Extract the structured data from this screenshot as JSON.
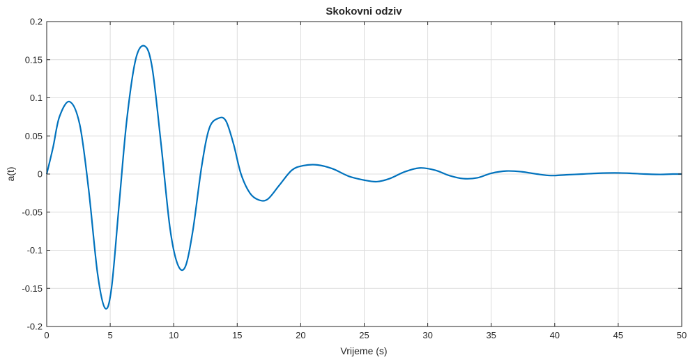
{
  "chart_data": {
    "type": "line",
    "title": "Skokovni odziv",
    "xlabel": "Vrijeme (s)",
    "ylabel": "a(t)",
    "xlim": [
      0,
      50
    ],
    "ylim": [
      -0.2,
      0.2
    ],
    "xticks": [
      0,
      5,
      10,
      15,
      20,
      25,
      30,
      35,
      40,
      45,
      50
    ],
    "xtick_labels": [
      "0",
      "5",
      "10",
      "15",
      "20",
      "25",
      "30",
      "35",
      "40",
      "45",
      "50"
    ],
    "yticks": [
      -0.2,
      -0.15,
      -0.1,
      -0.05,
      0,
      0.05,
      0.1,
      0.15,
      0.2
    ],
    "ytick_labels": [
      "-0.2",
      "-0.15",
      "-0.1",
      "-0.05",
      "0",
      "0.05",
      "0.1",
      "0.15",
      "0.2"
    ],
    "grid": true,
    "series": [
      {
        "color": "#0072BD",
        "x": [
          0,
          0.5,
          1.0,
          1.8,
          2.6,
          3.3,
          4.0,
          4.6,
          5.1,
          5.7,
          6.3,
          7.0,
          7.7,
          8.3,
          9.0,
          9.7,
          10.3,
          10.9,
          11.5,
          12.2,
          12.8,
          13.5,
          14.1,
          14.7,
          15.3,
          16.0,
          16.7,
          17.4,
          18.3,
          19.3,
          20.2,
          21.3,
          22.5,
          23.8,
          25.0,
          26.0,
          27.0,
          28.2,
          29.4,
          30.6,
          31.7,
          32.8,
          33.9,
          35.0,
          36.2,
          37.4,
          38.6,
          39.7,
          40.9,
          42.2,
          43.4,
          44.7,
          45.9,
          47.1,
          48.3,
          49.3,
          50.0
        ],
        "y": [
          0,
          0.035,
          0.075,
          0.095,
          0.065,
          -0.02,
          -0.13,
          -0.176,
          -0.15,
          -0.04,
          0.07,
          0.15,
          0.168,
          0.14,
          0.04,
          -0.07,
          -0.118,
          -0.122,
          -0.075,
          0.01,
          0.06,
          0.073,
          0.07,
          0.04,
          0.0,
          -0.025,
          -0.034,
          -0.033,
          -0.015,
          0.005,
          0.011,
          0.012,
          0.007,
          -0.003,
          -0.008,
          -0.01,
          -0.006,
          0.003,
          0.008,
          0.005,
          -0.002,
          -0.006,
          -0.005,
          0.001,
          0.004,
          0.003,
          0.0,
          -0.002,
          -0.001,
          0.0,
          0.001,
          0.0015,
          0.001,
          0.0,
          -0.0005,
          0.0,
          0.0
        ]
      }
    ]
  }
}
